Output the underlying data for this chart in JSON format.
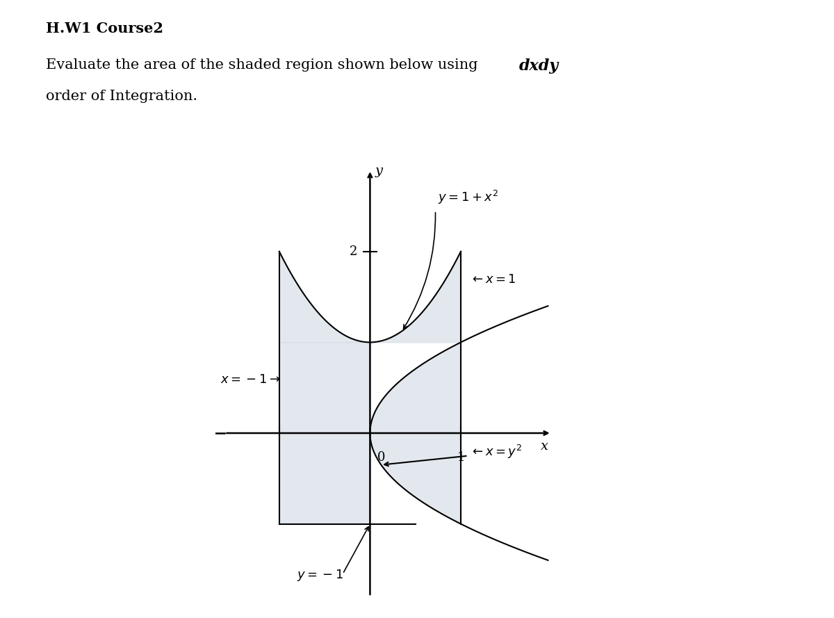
{
  "bg_color": "#ffffff",
  "shade_color": "#d8dfe8",
  "shade_alpha": 0.7,
  "axis_xlim": [
    -1.7,
    2.0
  ],
  "axis_ylim": [
    -1.9,
    3.0
  ],
  "label_y": "y",
  "label_x": "x",
  "label_eq1": "$y = 1 + x^2$",
  "label_x1": "$\\leftarrow \\mathit{x} = 1$",
  "label_xm1": "$\\mathit{x} = -1 \\rightarrow$",
  "label_xy2": "$\\leftarrow \\mathit{x} = y^2$",
  "label_ym1": "$y = -1$",
  "title": "H.W1 Course2",
  "line1": "Evaluate the area of the shaded region shown below using ",
  "line1_bold": "dxdy",
  "line2": "order of Integration."
}
